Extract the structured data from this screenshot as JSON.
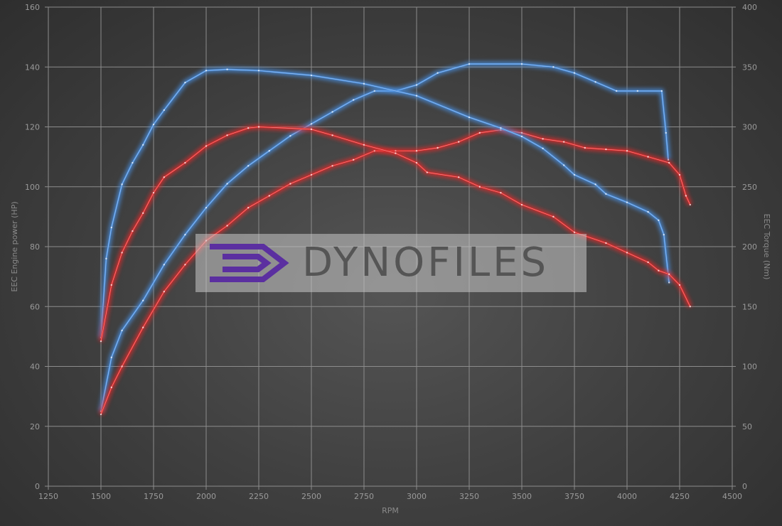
{
  "chart_data": {
    "type": "line",
    "xlabel": "RPM",
    "ylabel": "EEC Engine power (HP)",
    "y2label": "EEC Torque (Nm)",
    "xlim": [
      1250,
      4500
    ],
    "ylim": [
      0,
      160
    ],
    "y2lim": [
      0,
      400
    ],
    "xticks": [
      1250,
      1500,
      1750,
      2000,
      2250,
      2500,
      2750,
      3000,
      3250,
      3500,
      3750,
      4000,
      4250,
      4500
    ],
    "yticks": [
      0,
      20,
      40,
      60,
      80,
      100,
      120,
      140,
      160
    ],
    "y2ticks": [
      0,
      50,
      100,
      150,
      200,
      250,
      300,
      350,
      400
    ],
    "grid": true,
    "series": [
      {
        "axis": "power",
        "color": "#4a8fe0",
        "x": [
          1500,
          1550,
          1600,
          1700,
          1800,
          1900,
          2000,
          2100,
          2200,
          2300,
          2400,
          2500,
          2600,
          2700,
          2800,
          2900,
          3000,
          3100,
          3250,
          3500,
          3650,
          3750,
          3850,
          3950,
          4050,
          4165,
          4185,
          4196
        ],
        "y": [
          25,
          43,
          52,
          62,
          74,
          84,
          93,
          101,
          107,
          112,
          117,
          121,
          125,
          129,
          132,
          132,
          134,
          138,
          141,
          141,
          140,
          138,
          135,
          132,
          132,
          132,
          118,
          109
        ]
      },
      {
        "axis": "power",
        "color": "#e02a2a",
        "x": [
          1500,
          1550,
          1600,
          1700,
          1800,
          1900,
          2000,
          2100,
          2200,
          2300,
          2400,
          2500,
          2600,
          2700,
          2800,
          2900,
          3000,
          3100,
          3200,
          3300,
          3400,
          3500,
          3600,
          3700,
          3800,
          3900,
          4000,
          4100,
          4200,
          4250,
          4280,
          4300
        ],
        "y": [
          24,
          33,
          40,
          53,
          65,
          74,
          82,
          87,
          93,
          97,
          101,
          104,
          107,
          109,
          112,
          112,
          112,
          113,
          115,
          118,
          119,
          118,
          116,
          115,
          113,
          112.5,
          112,
          110,
          108,
          104,
          97,
          94
        ]
      },
      {
        "axis": "torque",
        "color": "#4a8fe0",
        "x": [
          1500,
          1525,
          1550,
          1600,
          1650,
          1700,
          1750,
          1800,
          1900,
          2000,
          2100,
          2250,
          2500,
          2750,
          3000,
          3250,
          3400,
          3500,
          3600,
          3700,
          3750,
          3850,
          3900,
          4000,
          4100,
          4150,
          4175,
          4200
        ],
        "y": [
          124,
          190,
          216,
          252,
          270,
          285,
          302,
          314,
          337,
          347,
          348,
          347,
          343,
          336,
          326,
          308,
          299,
          292,
          282,
          268,
          260,
          252,
          244,
          237,
          229,
          222,
          210,
          170
        ]
      },
      {
        "axis": "torque",
        "color": "#e02a2a",
        "x": [
          1500,
          1550,
          1600,
          1650,
          1700,
          1750,
          1800,
          1900,
          2000,
          2100,
          2200,
          2250,
          2500,
          2600,
          2750,
          2900,
          3000,
          3050,
          3200,
          3300,
          3400,
          3500,
          3650,
          3750,
          3900,
          4000,
          4100,
          4150,
          4200,
          4250,
          4300
        ],
        "y": [
          121,
          168,
          195,
          213,
          228,
          245,
          258,
          270,
          284,
          293,
          299,
          300,
          298,
          293,
          285,
          278,
          270,
          262,
          258,
          250,
          245,
          235,
          225,
          212,
          203,
          195,
          187,
          180,
          177,
          168,
          150
        ]
      }
    ]
  },
  "watermark": {
    "text": "DYNOFILES",
    "logo_color": "#5b2fa0"
  }
}
